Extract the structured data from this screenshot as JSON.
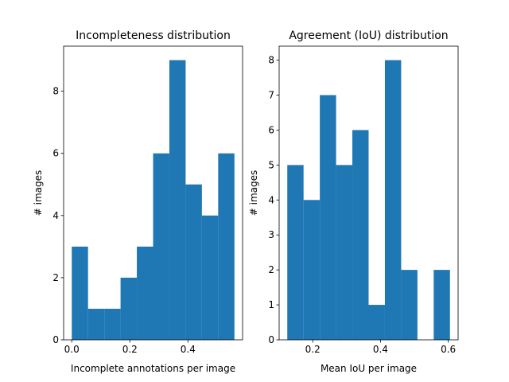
{
  "chart_data": [
    {
      "type": "histogram",
      "title": "Incompleteness distribution",
      "xlabel": "Incomplete annotations per image",
      "ylabel": "# images",
      "bins": [
        0,
        0.056,
        0.112,
        0.168,
        0.224,
        0.28,
        0.336,
        0.392,
        0.448,
        0.504,
        0.56
      ],
      "values": [
        3,
        1,
        1,
        2,
        3,
        6,
        9,
        5,
        4,
        6
      ],
      "color": "#1f77b4",
      "xlim": [
        -0.028,
        0.588
      ],
      "xticks": [
        {
          "value": 0,
          "label": "0.0"
        },
        0.2,
        0.4
      ],
      "ylim": [
        0,
        9.45
      ],
      "yticks": [
        0,
        2,
        4,
        6,
        8
      ]
    },
    {
      "type": "histogram",
      "title": "Agreement (IoU) distribution",
      "xlabel": "Mean IoU per image",
      "ylabel": "# images",
      "bins": [
        0.125,
        0.173,
        0.221,
        0.269,
        0.317,
        0.365,
        0.413,
        0.461,
        0.509,
        0.557,
        0.605
      ],
      "values": [
        5,
        4,
        7,
        5,
        6,
        1,
        8,
        2,
        0,
        2
      ],
      "color": "#1f77b4",
      "xlim": [
        0.101,
        0.629
      ],
      "xticks": [
        0.2,
        0.4,
        0.6
      ],
      "ylim": [
        0,
        8.4
      ],
      "yticks": [
        0,
        1,
        2,
        3,
        4,
        5,
        6,
        7,
        8
      ]
    }
  ]
}
